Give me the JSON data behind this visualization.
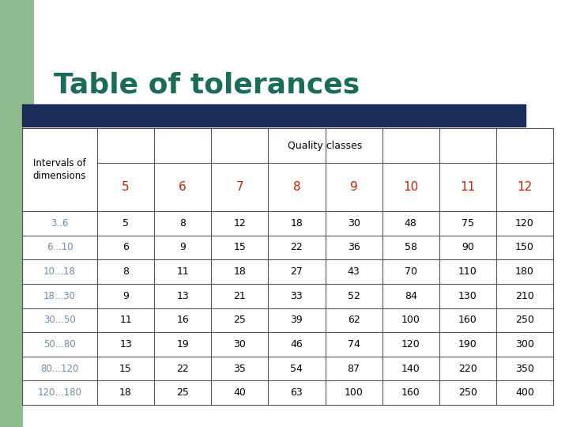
{
  "title": "Table of tolerances",
  "title_color": "#1a6b5a",
  "title_fontsize": 26,
  "bg_color": "#ffffff",
  "green_color": "#8fbc8f",
  "navy_bar_color": "#1a2d5a",
  "quality_class_color": "#cc2200",
  "interval_color": "#6b8cba",
  "data_color": "#000000",
  "header_label": "Intervals of\ndimensions",
  "quality_label": "Quality classes",
  "quality_nums": [
    "5",
    "6",
    "7",
    "8",
    "9",
    "10",
    "11",
    "12"
  ],
  "rows": [
    [
      "3..6",
      "5",
      "8",
      "12",
      "18",
      "30",
      "48",
      "75",
      "120"
    ],
    [
      "6...10",
      "6",
      "9",
      "15",
      "22",
      "36",
      "58",
      "90",
      "150"
    ],
    [
      "10...18",
      "8",
      "11",
      "18",
      "27",
      "43",
      "70",
      "110",
      "180"
    ],
    [
      "18...30",
      "9",
      "13",
      "21",
      "33",
      "52",
      "84",
      "130",
      "210"
    ],
    [
      "30...50",
      "11",
      "16",
      "25",
      "39",
      "62",
      "100",
      "160",
      "250"
    ],
    [
      "50...80",
      "13",
      "19",
      "30",
      "46",
      "74",
      "120",
      "190",
      "300"
    ],
    [
      "80...120",
      "15",
      "22",
      "35",
      "54",
      "87",
      "140",
      "220",
      "350"
    ],
    [
      "120...180",
      "18",
      "25",
      "40",
      "63",
      "100",
      "160",
      "250",
      "400"
    ]
  ]
}
